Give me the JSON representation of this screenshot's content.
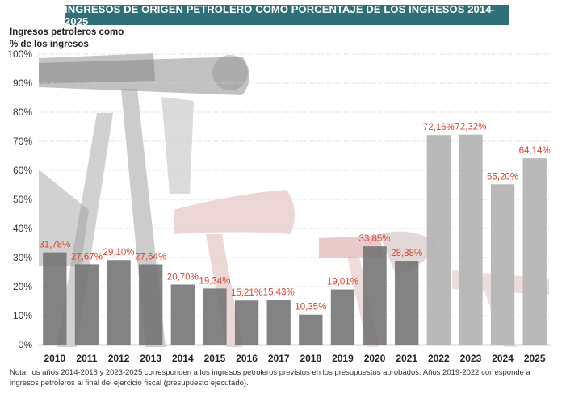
{
  "title": "INGRESOS DE ORIGEN PETROLERO COMO PORCENTAJE DE LOS INGRESOS 2014-2025",
  "ylabel_line1": "Ingresos petroleros como",
  "ylabel_line2": "% de los ingresos",
  "note": "Nota: los años 2014-2018 y 2023-2025 corresponden a los ingresos petroleros previstos en los presupuestos aprobados. Años 2019-2022 corresponde a ingresos petroleros al final del ejercicio fiscal (presupuesto ejecutado).",
  "colors": {
    "bar_dark": "#727272",
    "bar_light": "#b5b5b5",
    "label": "#d9432f",
    "title_bg": "#2f6f78",
    "grid": "#d0d0d0"
  },
  "chart_data": {
    "type": "bar",
    "categories": [
      "2010",
      "2011",
      "2012",
      "2013",
      "2014",
      "2015",
      "2016",
      "2017",
      "2018",
      "2019",
      "2020",
      "2021",
      "2022",
      "2023",
      "2024",
      "2025"
    ],
    "values": [
      31.78,
      27.67,
      29.1,
      27.64,
      20.7,
      19.34,
      15.21,
      15.43,
      10.35,
      19.01,
      33.85,
      28.88,
      72.16,
      72.32,
      55.2,
      64.14
    ],
    "value_labels": [
      "31,78%",
      "27,67%",
      "29,10%",
      "27,64%",
      "20,70%",
      "19,34%",
      "15,21%",
      "15,43%",
      "10,35%",
      "19,01%",
      "33,85%",
      "28,88%",
      "72,16%",
      "72,32%",
      "55,20%",
      "64,14%"
    ],
    "yticks": [
      "0%",
      "10%",
      "20%",
      "30%",
      "40%",
      "50%",
      "60%",
      "70%",
      "80%",
      "90%",
      "100%"
    ],
    "ylim": [
      0,
      100
    ],
    "grid": true
  }
}
